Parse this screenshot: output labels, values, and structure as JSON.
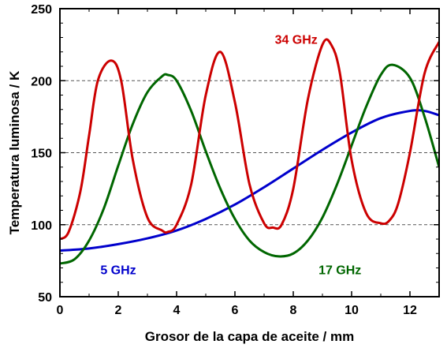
{
  "chart_data": {
    "type": "line",
    "xlabel": "Grosor de la capa de aceite / mm",
    "ylabel": "Temperatura luminosa / K",
    "xlim": [
      0,
      13
    ],
    "ylim": [
      50,
      250
    ],
    "xticks": [
      0,
      2,
      4,
      6,
      8,
      10,
      12
    ],
    "yticks": [
      50,
      100,
      150,
      200,
      250
    ],
    "grid": "horizontal dashed at 100, 150, 200",
    "legend": "none (series labeled inline)",
    "series": [
      {
        "name": "5 GHz",
        "color": "#0000cc",
        "x": [
          0,
          1,
          2,
          3,
          4,
          5,
          6,
          7,
          8,
          9,
          10,
          11,
          12,
          12.5,
          13
        ],
        "values": [
          82,
          83.5,
          86.5,
          90.5,
          96,
          104,
          114,
          126,
          139,
          152,
          164,
          174,
          179,
          179,
          176
        ]
      },
      {
        "name": "17 GHz",
        "color": "#006600",
        "x": [
          0,
          0.5,
          1,
          1.5,
          2,
          2.5,
          3,
          3.5,
          3.7,
          4,
          4.5,
          5,
          5.5,
          6,
          6.5,
          7,
          7.5,
          8,
          8.5,
          9,
          9.5,
          10,
          10.5,
          11,
          11.4,
          12,
          12.5,
          13
        ],
        "values": [
          73,
          76,
          89,
          111,
          141,
          170,
          192,
          203,
          204,
          200,
          179,
          151,
          125,
          104,
          89,
          81,
          78,
          80,
          89,
          105,
          128,
          155,
          182,
          204,
          211,
          202,
          175,
          140
        ]
      },
      {
        "name": "34 GHz",
        "color": "#cc0000",
        "x": [
          0,
          0.3,
          0.7,
          1,
          1.3,
          1.75,
          2.1,
          2.5,
          3,
          3.5,
          3.7,
          4,
          4.5,
          5,
          5.5,
          6,
          6.5,
          7,
          7.3,
          7.6,
          8,
          8.5,
          9,
          9.3,
          9.6,
          10,
          10.5,
          11,
          11.3,
          11.6,
          12,
          12.5,
          13
        ],
        "values": [
          90,
          95,
          123,
          162,
          200,
          214,
          200,
          145,
          105,
          96,
          95,
          100,
          128,
          190,
          220,
          185,
          128,
          101,
          98,
          100,
          125,
          187,
          225,
          225,
          205,
          145,
          108,
          101,
          103,
          115,
          150,
          205,
          227
        ]
      }
    ]
  }
}
